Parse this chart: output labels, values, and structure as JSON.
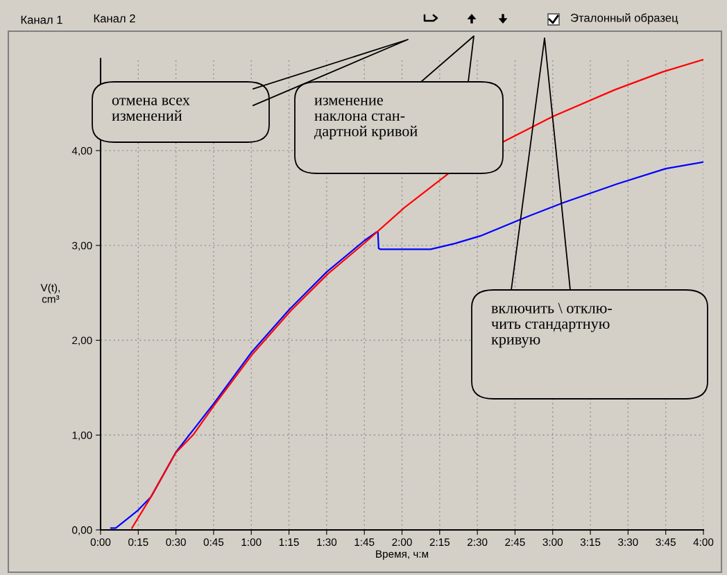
{
  "chart_data": {
    "type": "line",
    "xlabel": "Время, ч:м",
    "ylabel": "V(t),\ncm³",
    "xlim": [
      0,
      4
    ],
    "ylim": [
      0,
      4.97
    ],
    "xticks": [
      {
        "value": 0,
        "label": "0:00"
      },
      {
        "value": 0.25,
        "label": "0:15"
      },
      {
        "value": 0.5,
        "label": "0:30"
      },
      {
        "value": 0.75,
        "label": "0:45"
      },
      {
        "value": 1,
        "label": "1:00"
      },
      {
        "value": 1.25,
        "label": "1:15"
      },
      {
        "value": 1.5,
        "label": "1:30"
      },
      {
        "value": 1.75,
        "label": "1:45"
      },
      {
        "value": 2,
        "label": "2:00"
      },
      {
        "value": 2.25,
        "label": "2:15"
      },
      {
        "value": 2.5,
        "label": "2:30"
      },
      {
        "value": 2.75,
        "label": "2:45"
      },
      {
        "value": 3,
        "label": "3:00"
      },
      {
        "value": 3.25,
        "label": "3:15"
      },
      {
        "value": 3.5,
        "label": "3:30"
      },
      {
        "value": 3.75,
        "label": "3:45"
      },
      {
        "value": 4,
        "label": "4:00"
      }
    ],
    "yticks": [
      {
        "value": 0,
        "label": "0,00"
      },
      {
        "value": 1,
        "label": "1,00"
      },
      {
        "value": 2,
        "label": "2,00"
      },
      {
        "value": 3,
        "label": "3,00"
      },
      {
        "value": 4,
        "label": "4,00"
      }
    ],
    "grid": true,
    "legend": false,
    "marker": "none",
    "line_style": "solid",
    "series": [
      {
        "color": "#0000ff",
        "x": [
          0.069,
          0.1,
          0.18,
          0.25,
          0.335,
          0.5,
          0.75,
          1.0,
          1.25,
          1.5,
          1.75,
          1.83,
          1.84,
          1.845,
          1.855,
          2.0,
          2.19,
          2.35,
          2.52,
          2.81,
          3.07,
          3.43,
          3.75,
          4.0
        ],
        "values": [
          0.02,
          0.02,
          0.12,
          0.21,
          0.35,
          0.82,
          1.33,
          1.87,
          2.32,
          2.72,
          3.05,
          3.14,
          3.14,
          2.97,
          2.96,
          2.96,
          2.96,
          3.02,
          3.1,
          3.29,
          3.45,
          3.65,
          3.81,
          3.88
        ]
      },
      {
        "color": "#ff0000",
        "x": [
          0.208,
          0.335,
          0.497,
          0.613,
          0.752,
          1.006,
          1.261,
          1.508,
          1.755,
          2.017,
          2.31,
          2.68,
          3.0,
          3.41,
          3.73,
          4.0
        ],
        "values": [
          0.02,
          0.35,
          0.81,
          1.0,
          1.31,
          1.85,
          2.31,
          2.7,
          3.03,
          3.4,
          3.76,
          4.1,
          4.36,
          4.64,
          4.83,
          4.96
        ]
      }
    ],
    "annotations": [
      "Канал 1",
      "Канал 2",
      "Эталонный образец",
      "отмена всех\nизменений",
      "изменение\nнаклона стан-\nдартной кривой",
      "включить \\ отклю-\nчить стандартную\nкривую"
    ]
  }
}
